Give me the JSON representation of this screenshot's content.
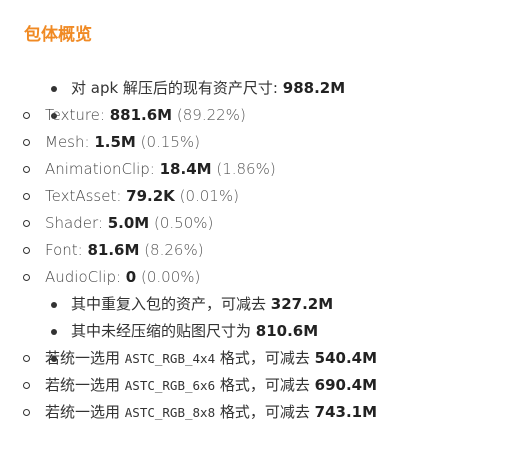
{
  "title": "包体概览",
  "total": {
    "label": "对 apk 解压后的现有资产尺寸: ",
    "value": "988.2M"
  },
  "assets": [
    {
      "label": "Texture: ",
      "value": "881.6M",
      "pct": "(89.22%)"
    },
    {
      "label": "Mesh: ",
      "value": "1.5M",
      "pct": "(0.15%)"
    },
    {
      "label": "AnimationClip: ",
      "value": "18.4M",
      "pct": "(1.86%)"
    },
    {
      "label": "TextAsset: ",
      "value": "79.2K",
      "pct": "(0.01%)"
    },
    {
      "label": "Shader: ",
      "value": "5.0M",
      "pct": "(0.50%)"
    },
    {
      "label": "Font: ",
      "value": "81.6M",
      "pct": "(8.26%)"
    },
    {
      "label": "AudioClip: ",
      "value": "0",
      "pct": "(0.00%)"
    }
  ],
  "duplicate": {
    "label": "其中重复入包的资产，可减去 ",
    "value": "327.2M"
  },
  "uncompressed": {
    "label": "其中未经压缩的贴图尺寸为 ",
    "value": "810.6M"
  },
  "options": [
    {
      "prefix": "若统一选用 ",
      "code": "ASTC_RGB_4x4",
      "suffix": " 格式，可减去 ",
      "value": "540.4M"
    },
    {
      "prefix": "若统一选用 ",
      "code": "ASTC_RGB_6x6",
      "suffix": " 格式，可减去 ",
      "value": "690.4M"
    },
    {
      "prefix": "若统一选用 ",
      "code": "ASTC_RGB_8x8",
      "suffix": " 格式，可减去 ",
      "value": "743.1M"
    }
  ],
  "colors": {
    "title": "#f08a24",
    "text": "#333333"
  }
}
